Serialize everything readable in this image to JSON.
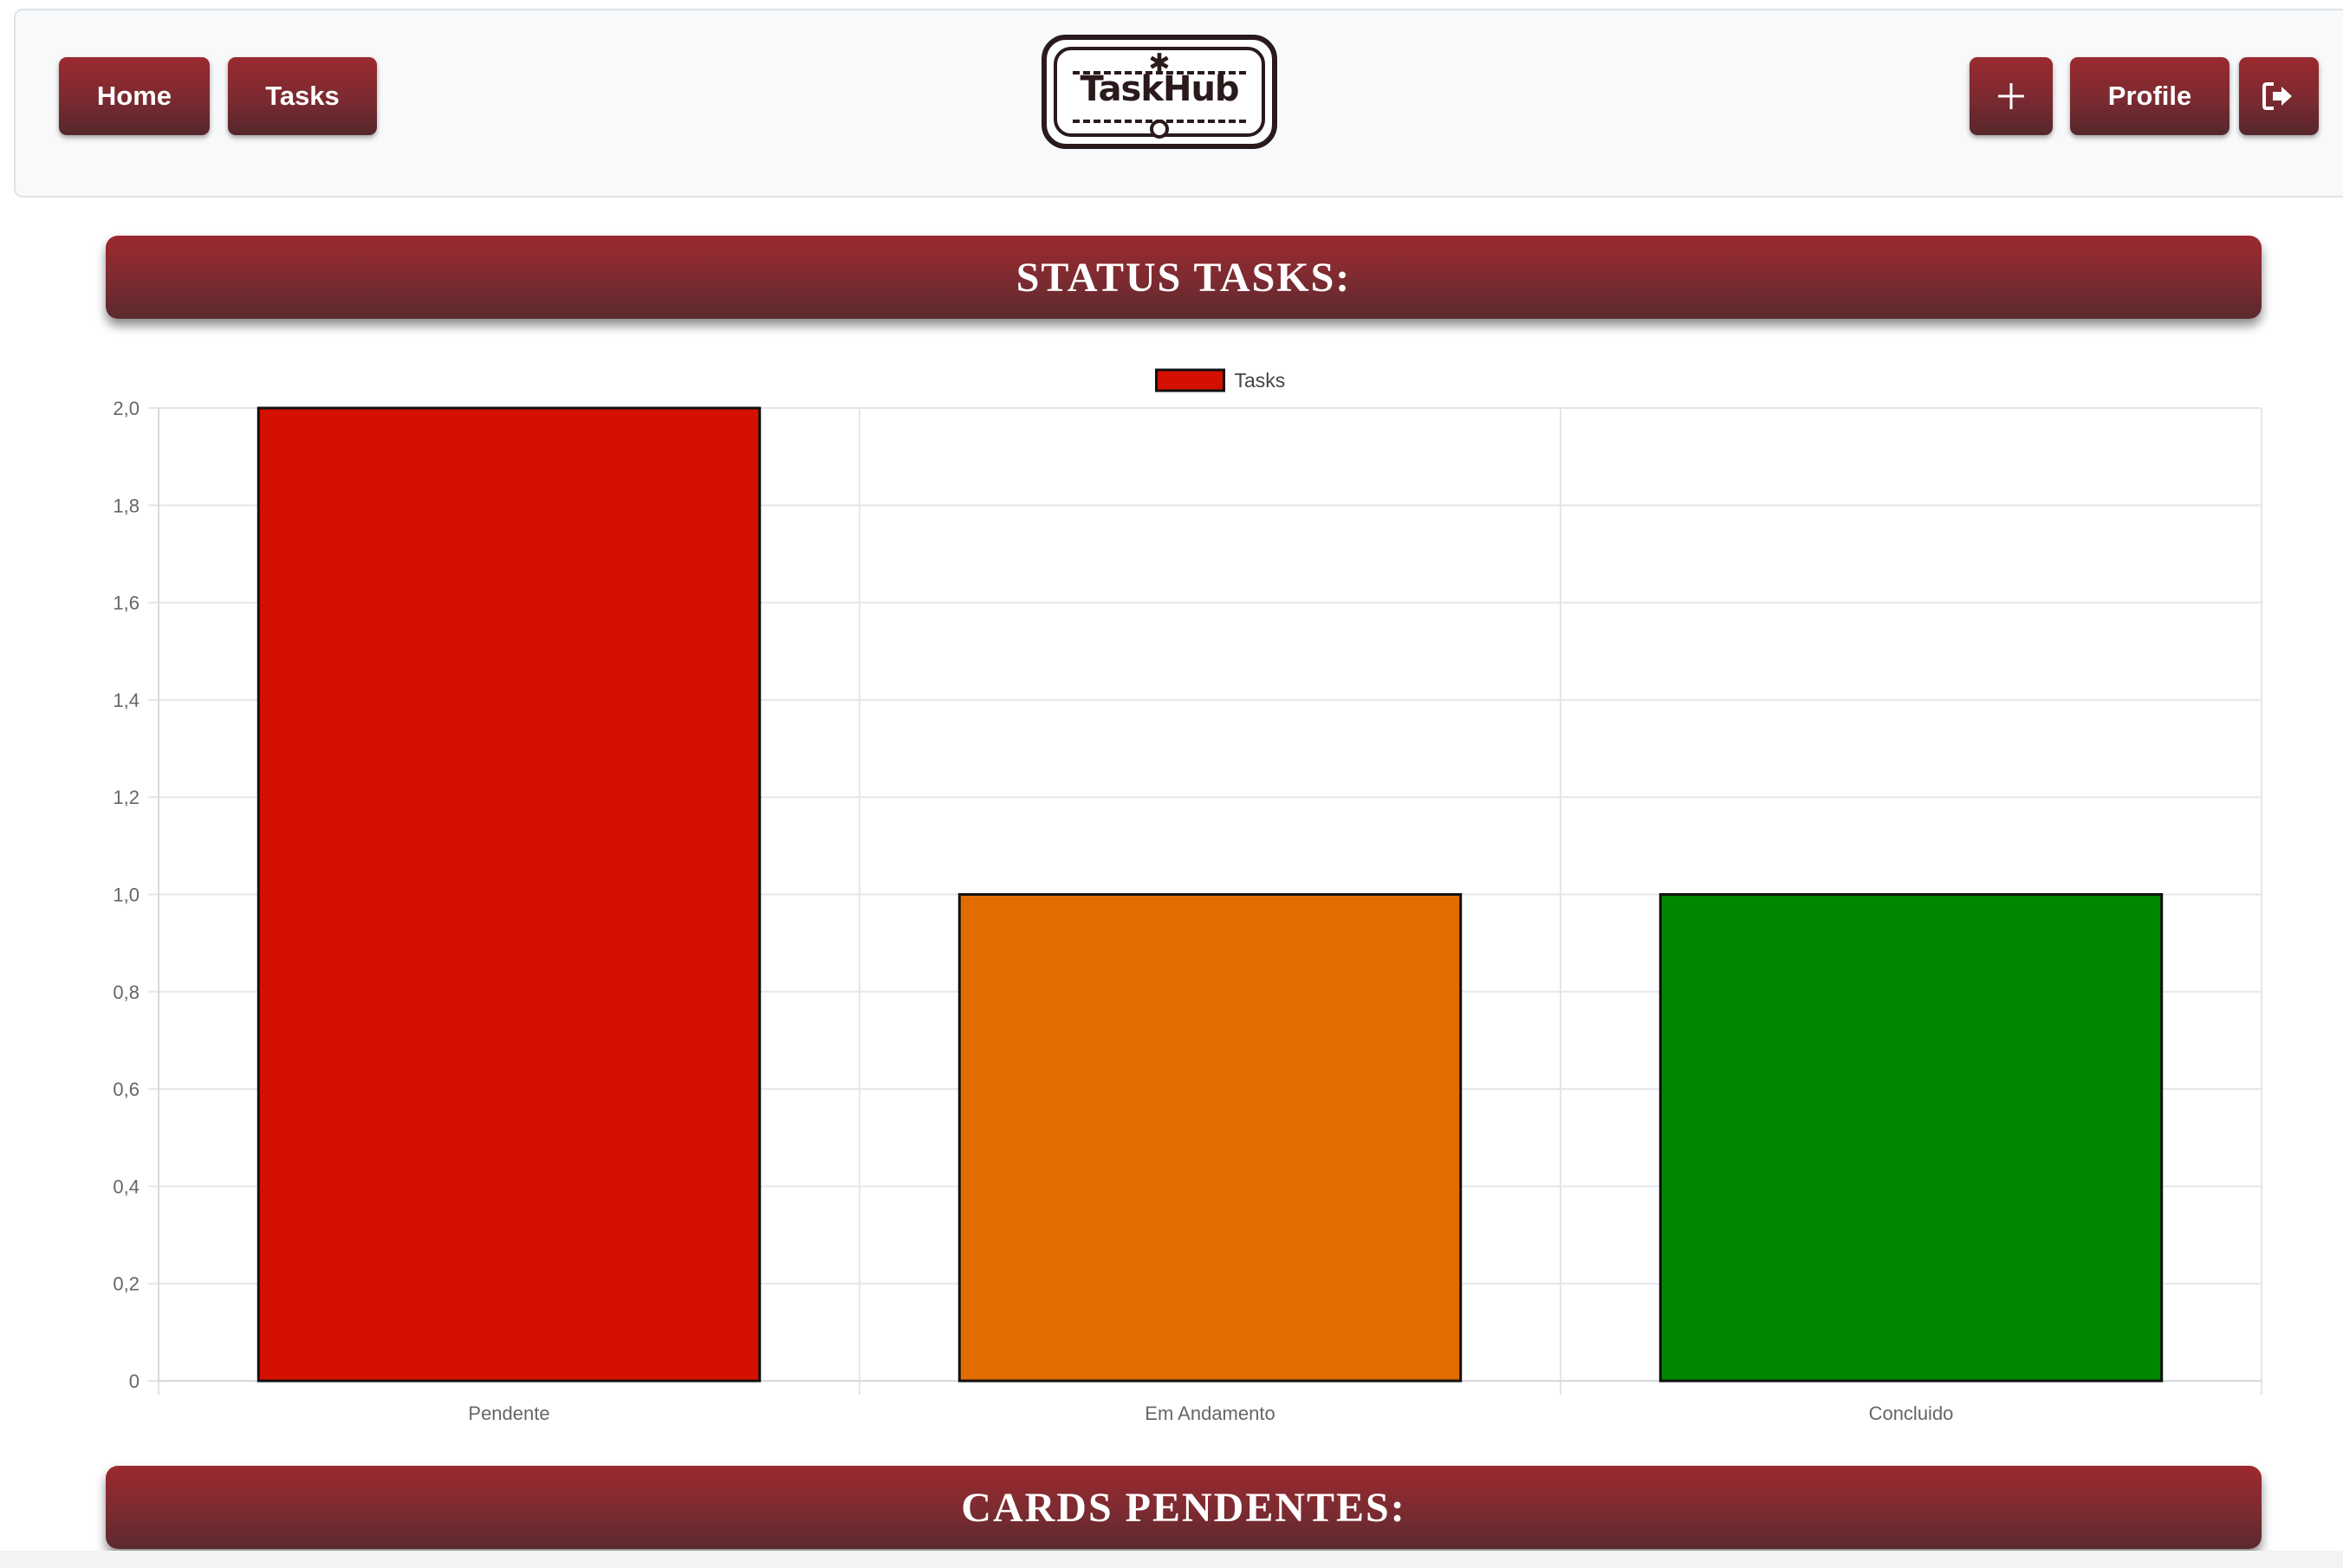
{
  "nav": {
    "home_label": "Home",
    "tasks_label": "Tasks",
    "add_icon": "plus-icon",
    "profile_label": "Profile",
    "logout_icon": "logout-icon",
    "logo_text": "TaskHub"
  },
  "sections": {
    "status_title": "STATUS TASKS:",
    "cards_title": "CARDS PENDENTES:"
  },
  "colors": {
    "accent": "#7a2a30",
    "pendente": "#d41000",
    "em_andamento": "#e26c00",
    "concluido": "#008700"
  },
  "chart_data": {
    "type": "bar",
    "categories": [
      "Pendente",
      "Em Andamento",
      "Concluido"
    ],
    "series": [
      {
        "name": "Tasks",
        "values": [
          2,
          1,
          1
        ]
      }
    ],
    "bar_colors": [
      "#d41000",
      "#e26c00",
      "#008700"
    ],
    "legend_color": "#d41000",
    "ylim": [
      0,
      2
    ],
    "yticks": [
      "0",
      "0,2",
      "0,4",
      "0,6",
      "0,8",
      "1,0",
      "1,2",
      "1,4",
      "1,6",
      "1,8",
      "2,0"
    ],
    "grid": true,
    "legend": "top-center"
  }
}
